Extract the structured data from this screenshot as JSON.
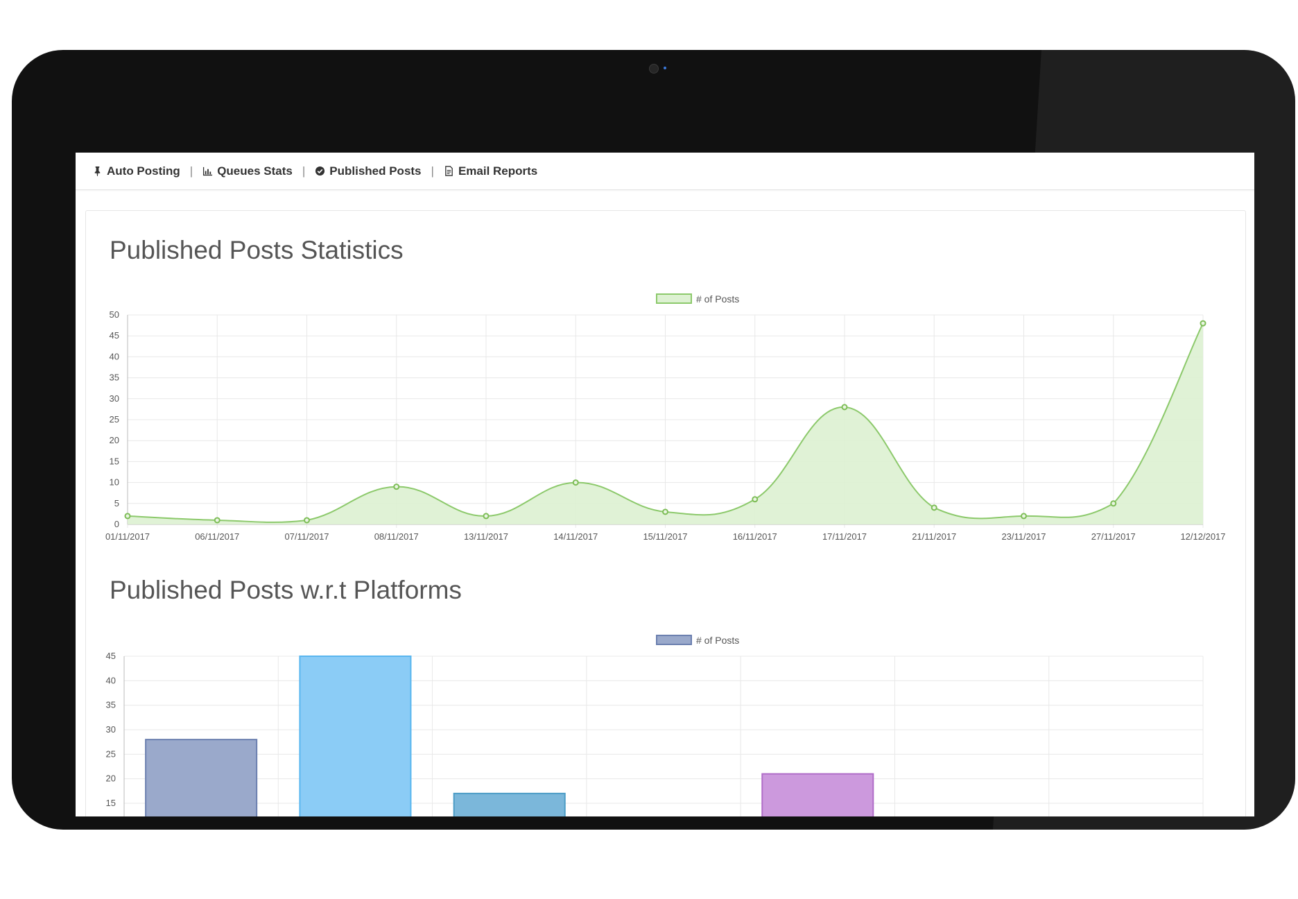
{
  "nav": {
    "items": [
      {
        "label": "Auto Posting",
        "icon": "pin-icon"
      },
      {
        "label": "Queues Stats",
        "icon": "bar-chart-icon"
      },
      {
        "label": "Published Posts",
        "icon": "check-circle-icon"
      },
      {
        "label": "Email Reports",
        "icon": "document-icon"
      }
    ],
    "separator": "|"
  },
  "sections": {
    "stats_title": "Published Posts Statistics",
    "platforms_title": "Published Posts w.r.t Platforms"
  },
  "chart_data": [
    {
      "type": "area",
      "legend": "# of Posts",
      "legend_position": "top-center",
      "grid": true,
      "categories": [
        "01/11/2017",
        "06/11/2017",
        "07/11/2017",
        "08/11/2017",
        "13/11/2017",
        "14/11/2017",
        "15/11/2017",
        "16/11/2017",
        "17/11/2017",
        "21/11/2017",
        "23/11/2017",
        "27/11/2017",
        "12/12/2017"
      ],
      "values": [
        2,
        1,
        1,
        9,
        2,
        10,
        3,
        6,
        28,
        4,
        2,
        5,
        48
      ],
      "ylim": [
        0,
        50
      ],
      "yticks": [
        0,
        5,
        10,
        15,
        20,
        25,
        30,
        35,
        40,
        45,
        50
      ],
      "colors": {
        "line": "#8cc96b",
        "fill": "#ddf1d2",
        "point": "#7dbd56"
      }
    },
    {
      "type": "bar",
      "legend": "# of Posts",
      "legend_position": "top-center",
      "grid": true,
      "values": [
        28,
        45,
        17,
        0,
        21,
        0,
        0
      ],
      "ylim": [
        0,
        45
      ],
      "yticks": [
        15,
        20,
        25,
        30,
        35,
        40,
        45
      ],
      "colors": {
        "fills": [
          "#9aa9cb",
          "#8bccf6",
          "#7bb7da",
          "#cccccc",
          "#cc99dd",
          "#cccccc",
          "#cccccc"
        ],
        "strokes": [
          "#6b7faf",
          "#59b6ef",
          "#4b9cc6",
          "#aaaaaa",
          "#b06cc8",
          "#aaaaaa",
          "#aaaaaa"
        ],
        "legend_fill": "#9aa9cb",
        "legend_stroke": "#6b7faf"
      }
    }
  ]
}
